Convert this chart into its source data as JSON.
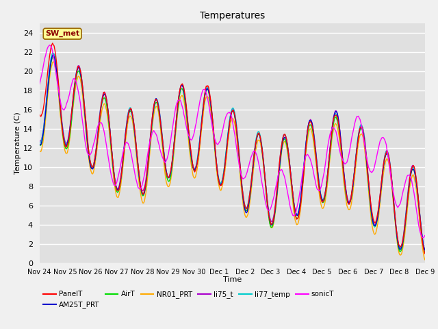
{
  "title": "Temperatures",
  "xlabel": "Time",
  "ylabel": "Temperature (C)",
  "ylim": [
    0,
    25
  ],
  "yticks": [
    0,
    2,
    4,
    6,
    8,
    10,
    12,
    14,
    16,
    18,
    20,
    22,
    24
  ],
  "annotation_text": "SW_met",
  "series_names": [
    "PanelT",
    "AM25T_PRT",
    "AirT",
    "NR01_PRT",
    "li75_t",
    "li77_temp",
    "sonicT"
  ],
  "series_colors": {
    "PanelT": "#ff0000",
    "AM25T_PRT": "#0000cc",
    "AirT": "#00dd00",
    "NR01_PRT": "#ffaa00",
    "li75_t": "#aa00cc",
    "li77_temp": "#00cccc",
    "sonicT": "#ff00ff"
  },
  "xtick_labels": [
    "Nov 24",
    "Nov 25",
    "Nov 26",
    "Nov 27",
    "Nov 28",
    "Nov 29",
    "Nov 30",
    "Dec 1",
    "Dec 2",
    "Dec 3",
    "Dec 4",
    "Dec 5",
    "Dec 6",
    "Dec 7",
    "Dec 8",
    "Dec 9"
  ],
  "legend_row1": [
    "PanelT",
    "AM25T_PRT",
    "AirT",
    "NR01_PRT",
    "li75_t",
    "li77_temp"
  ],
  "legend_row2": [
    "sonicT"
  ],
  "fig_facecolor": "#f0f0f0",
  "ax_facecolor": "#e0e0e0"
}
